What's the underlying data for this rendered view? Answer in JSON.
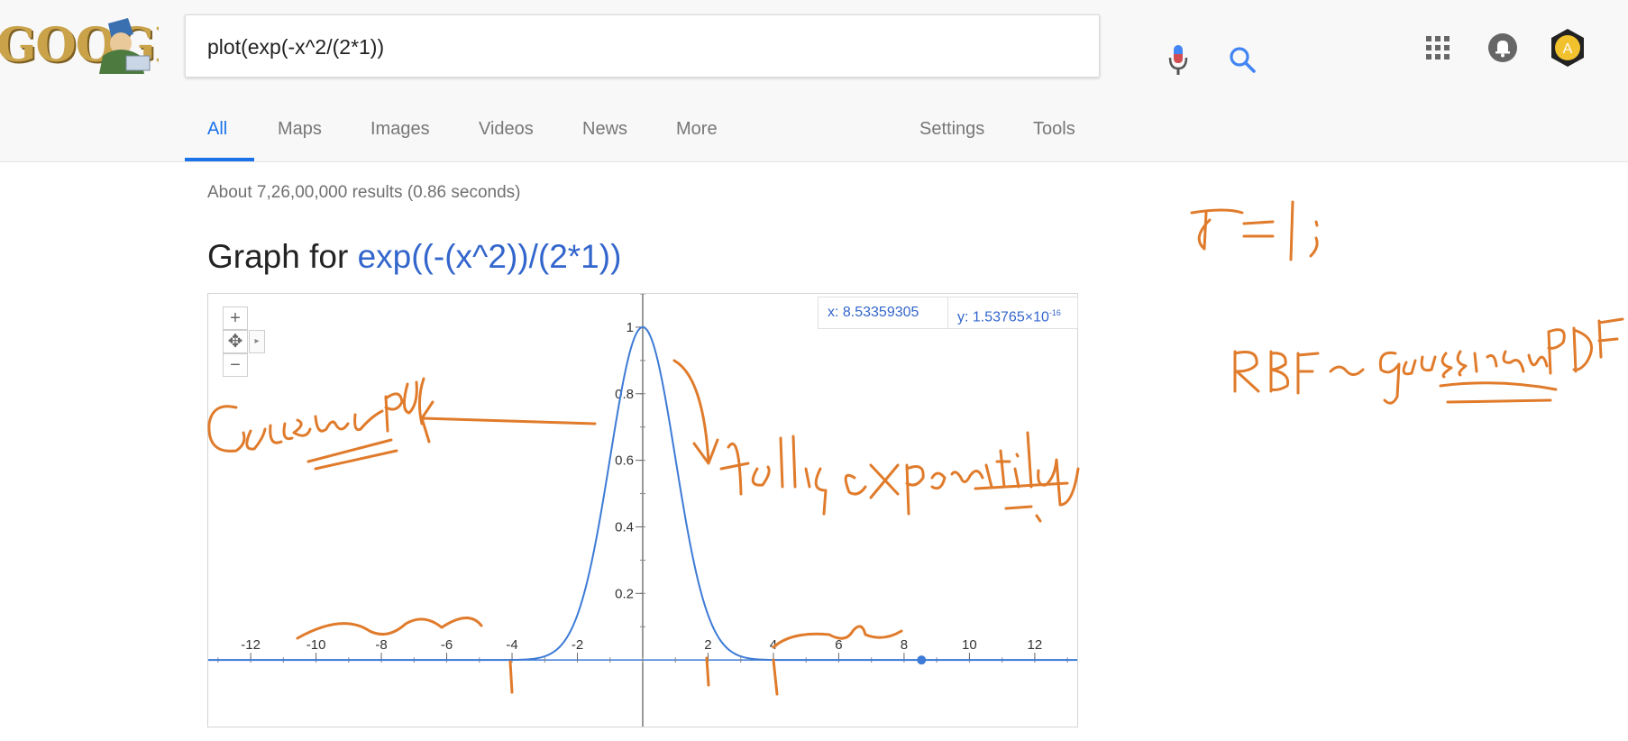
{
  "search": {
    "query": "plot(exp(-x^2/(2*1))"
  },
  "tabs": [
    {
      "label": "All",
      "active": true
    },
    {
      "label": "Maps"
    },
    {
      "label": "Images"
    },
    {
      "label": "Videos"
    },
    {
      "label": "News"
    },
    {
      "label": "More"
    },
    {
      "label": "Settings"
    },
    {
      "label": "Tools"
    }
  ],
  "results": {
    "stats": "About 7,26,00,000 results (0.86 seconds)"
  },
  "graph": {
    "heading_prefix": "Graph for ",
    "heading_function": "exp((-(x^2))/(2*1))",
    "coord_x": "x: 8.53359305",
    "coord_y_base": "y: 1.53765×10",
    "coord_y_exp": "-16",
    "controls": {
      "zoom_in": "+",
      "zoom_out": "−",
      "pan": "✥"
    }
  },
  "chart_data": {
    "type": "line",
    "function": "exp(-x^2/2)",
    "xlim": [
      -13.3,
      13.3
    ],
    "ylim": [
      -0.2,
      1.1
    ],
    "x_ticks": [
      -12,
      -10,
      -8,
      -6,
      -4,
      -2,
      2,
      4,
      6,
      8,
      10,
      12
    ],
    "y_ticks": [
      0.2,
      0.4,
      0.6,
      0.8,
      1
    ],
    "marker": {
      "x": 8.53359305,
      "y": 0
    },
    "color": "#3d7bd6"
  },
  "colors": {
    "accent": "#1a73e8",
    "link": "#3366cc",
    "ink": "#e07b2b"
  },
  "icons": {
    "mic": "mic-icon",
    "search": "search-icon",
    "apps": "apps-icon",
    "notifications": "bell-icon",
    "avatar": "avatar-icon"
  }
}
